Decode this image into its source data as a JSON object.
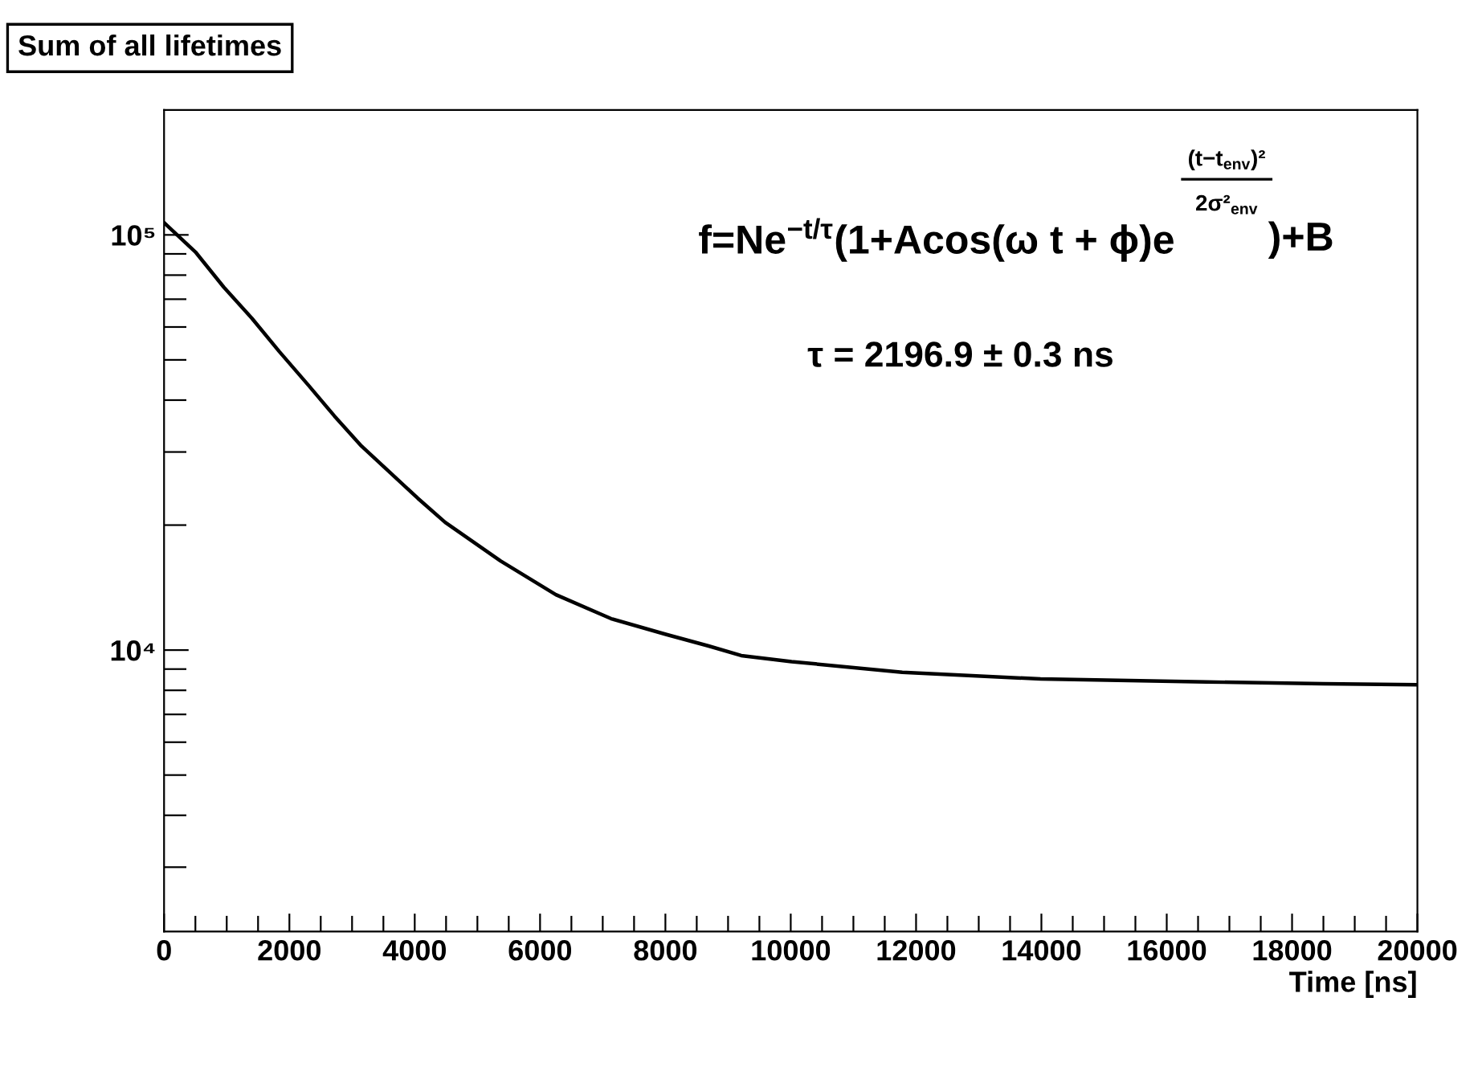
{
  "chart_data": {
    "type": "line",
    "title": "Sum of all lifetimes",
    "xlabel": "Time [ns]",
    "annotations": [
      "f=Ne$^{−t/τ}$(1+Acos(ω t + ϕ)e",
      "(t−t$_{env}$)²",
      "2σ²$_{env}$",
      ")+B",
      "τ = 2196.9 ± 0.3 ns"
    ],
    "x": [
      0,
      500,
      954,
      1400,
      1837,
      2300,
      2720,
      3150,
      3603,
      4050,
      4486,
      5369,
      6252,
      7135,
      8018,
      8690,
      9210,
      10013,
      11780,
      13987,
      16635,
      18500,
      19990
    ],
    "series": [
      {
        "color": "#000000",
        "values": [
          107000,
          91000,
          74800,
          63000,
          52400,
          43500,
          36600,
          31000,
          26800,
          23200,
          20300,
          16400,
          13600,
          11900,
          10900,
          10230,
          9700,
          9380,
          8840,
          8520,
          8380,
          8300,
          8250
        ]
      }
    ],
    "xlim": [
      0,
      20000
    ],
    "ylim": [
      2100,
      200000
    ],
    "log": "y",
    "grid": false,
    "legend": false,
    "marker": "none",
    "line_style": "solid",
    "xticks": [
      0,
      {
        "value": 500,
        "label": null
      },
      {
        "value": 1000,
        "label": null
      },
      {
        "value": 1500,
        "label": null
      },
      2000,
      {
        "value": 2500,
        "label": null
      },
      {
        "value": 3000,
        "label": null
      },
      {
        "value": 3500,
        "label": null
      },
      4000,
      {
        "value": 4500,
        "label": null
      },
      {
        "value": 5000,
        "label": null
      },
      {
        "value": 5500,
        "label": null
      },
      6000,
      {
        "value": 6500,
        "label": null
      },
      {
        "value": 7000,
        "label": null
      },
      {
        "value": 7500,
        "label": null
      },
      8000,
      {
        "value": 8500,
        "label": null
      },
      {
        "value": 9000,
        "label": null
      },
      {
        "value": 9500,
        "label": null
      },
      10000,
      {
        "value": 10500,
        "label": null
      },
      {
        "value": 11000,
        "label": null
      },
      {
        "value": 11500,
        "label": null
      },
      12000,
      {
        "value": 12500,
        "label": null
      },
      {
        "value": 13000,
        "label": null
      },
      {
        "value": 13500,
        "label": null
      },
      14000,
      {
        "value": 14500,
        "label": null
      },
      {
        "value": 15000,
        "label": null
      },
      {
        "value": 15500,
        "label": null
      },
      16000,
      {
        "value": 16500,
        "label": null
      },
      {
        "value": 17000,
        "label": null
      },
      {
        "value": 17500,
        "label": null
      },
      18000,
      {
        "value": 18500,
        "label": null
      },
      {
        "value": 19000,
        "label": null
      },
      {
        "value": 19500,
        "label": null
      },
      20000
    ],
    "yticks": [
      {
        "value": 3000,
        "label": null
      },
      {
        "value": 4000,
        "label": null
      },
      {
        "value": 5000,
        "label": null
      },
      {
        "value": 6000,
        "label": null
      },
      {
        "value": 7000,
        "label": null
      },
      {
        "value": 8000,
        "label": null
      },
      {
        "value": 9000,
        "label": null
      },
      {
        "value": 10000,
        "label": "10⁴"
      },
      {
        "value": 20000,
        "label": null
      },
      {
        "value": 30000,
        "label": null
      },
      {
        "value": 40000,
        "label": null
      },
      {
        "value": 50000,
        "label": null
      },
      {
        "value": 60000,
        "label": null
      },
      {
        "value": 70000,
        "label": null
      },
      {
        "value": 80000,
        "label": null
      },
      {
        "value": 90000,
        "label": null
      },
      {
        "value": 100000,
        "label": "10⁵"
      }
    ]
  }
}
